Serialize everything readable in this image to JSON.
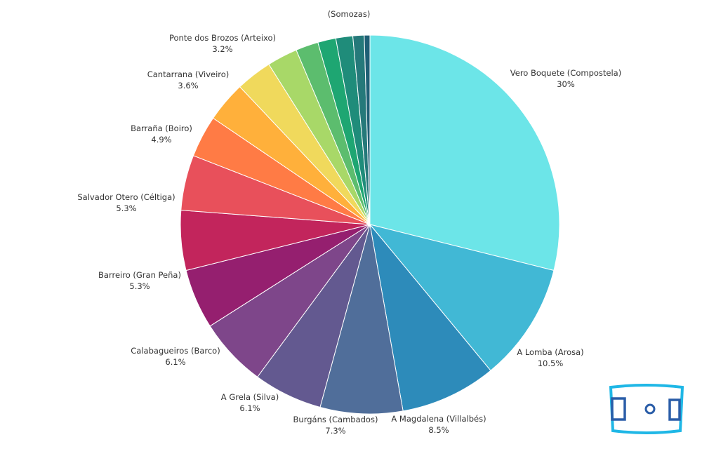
{
  "chart_data": {
    "type": "pie",
    "title": "",
    "start_angle": "12 o'clock",
    "direction": "clockwise",
    "slices": [
      {
        "name": "Vero Boquete (Compostela)",
        "value": 30,
        "value_label": "30%",
        "color": "#6ce5e8",
        "labeled": true
      },
      {
        "name": "A Lomba (Arosa)",
        "value": 10.5,
        "value_label": "10.5%",
        "color": "#41b8d5",
        "labeled": true
      },
      {
        "name": "A Magdalena (Villalbés)",
        "value": 8.5,
        "value_label": "8.5%",
        "color": "#2d8bba",
        "labeled": true
      },
      {
        "name": "Burgáns (Cambados)",
        "value": 7.3,
        "value_label": "7.3%",
        "color": "#506e9a",
        "labeled": true
      },
      {
        "name": "A Grela (Silva)",
        "value": 6.1,
        "value_label": "6.1%",
        "color": "#635990",
        "labeled": true
      },
      {
        "name": "Calabagueiros (Barco)",
        "value": 6.1,
        "value_label": "6.1%",
        "color": "#7e468a",
        "labeled": true
      },
      {
        "name": "Barreiro (Gran Peña)",
        "value": 5.3,
        "value_label": "5.3%",
        "color": "#951f6f",
        "labeled": true
      },
      {
        "name": "Salvador Otero (Céltiga)",
        "value": 5.3,
        "value_label": "5.3%",
        "color": "#c2255c",
        "labeled": true
      },
      {
        "name": "Barraña (Boiro)",
        "value": 4.9,
        "value_label": "4.9%",
        "color": "#e8505b",
        "labeled": true
      },
      {
        "name": "",
        "value": 3.7,
        "value_label": "",
        "color": "#ff7b45",
        "labeled": false
      },
      {
        "name": "Cantarrana (Viveiro)",
        "value": 3.6,
        "value_label": "3.6%",
        "color": "#ffb03b",
        "labeled": true
      },
      {
        "name": "Ponte dos Brozos (Arteixo)",
        "value": 3.2,
        "value_label": "3.2%",
        "color": "#f0d95c",
        "labeled": true
      },
      {
        "name": "",
        "value": 2.7,
        "value_label": "",
        "color": "#a8d868",
        "labeled": false
      },
      {
        "name": "",
        "value": 2.0,
        "value_label": "",
        "color": "#5cbd6e",
        "labeled": false
      },
      {
        "name": "",
        "value": 1.6,
        "value_label": "",
        "color": "#1ea672",
        "labeled": false
      },
      {
        "name": "",
        "value": 1.5,
        "value_label": "",
        "color": "#1f8c7a",
        "labeled": false
      },
      {
        "name": "",
        "value": 1.0,
        "value_label": "",
        "color": "#25797a",
        "labeled": false
      },
      {
        "name": "(Somozas)",
        "value": 0.5,
        "value_label": "",
        "color": "#1f5f75",
        "labeled": true
      }
    ]
  },
  "logo": {
    "icon": "soccer-field-icon",
    "color": "#1fb7e6",
    "line_color": "#2a5da8"
  }
}
